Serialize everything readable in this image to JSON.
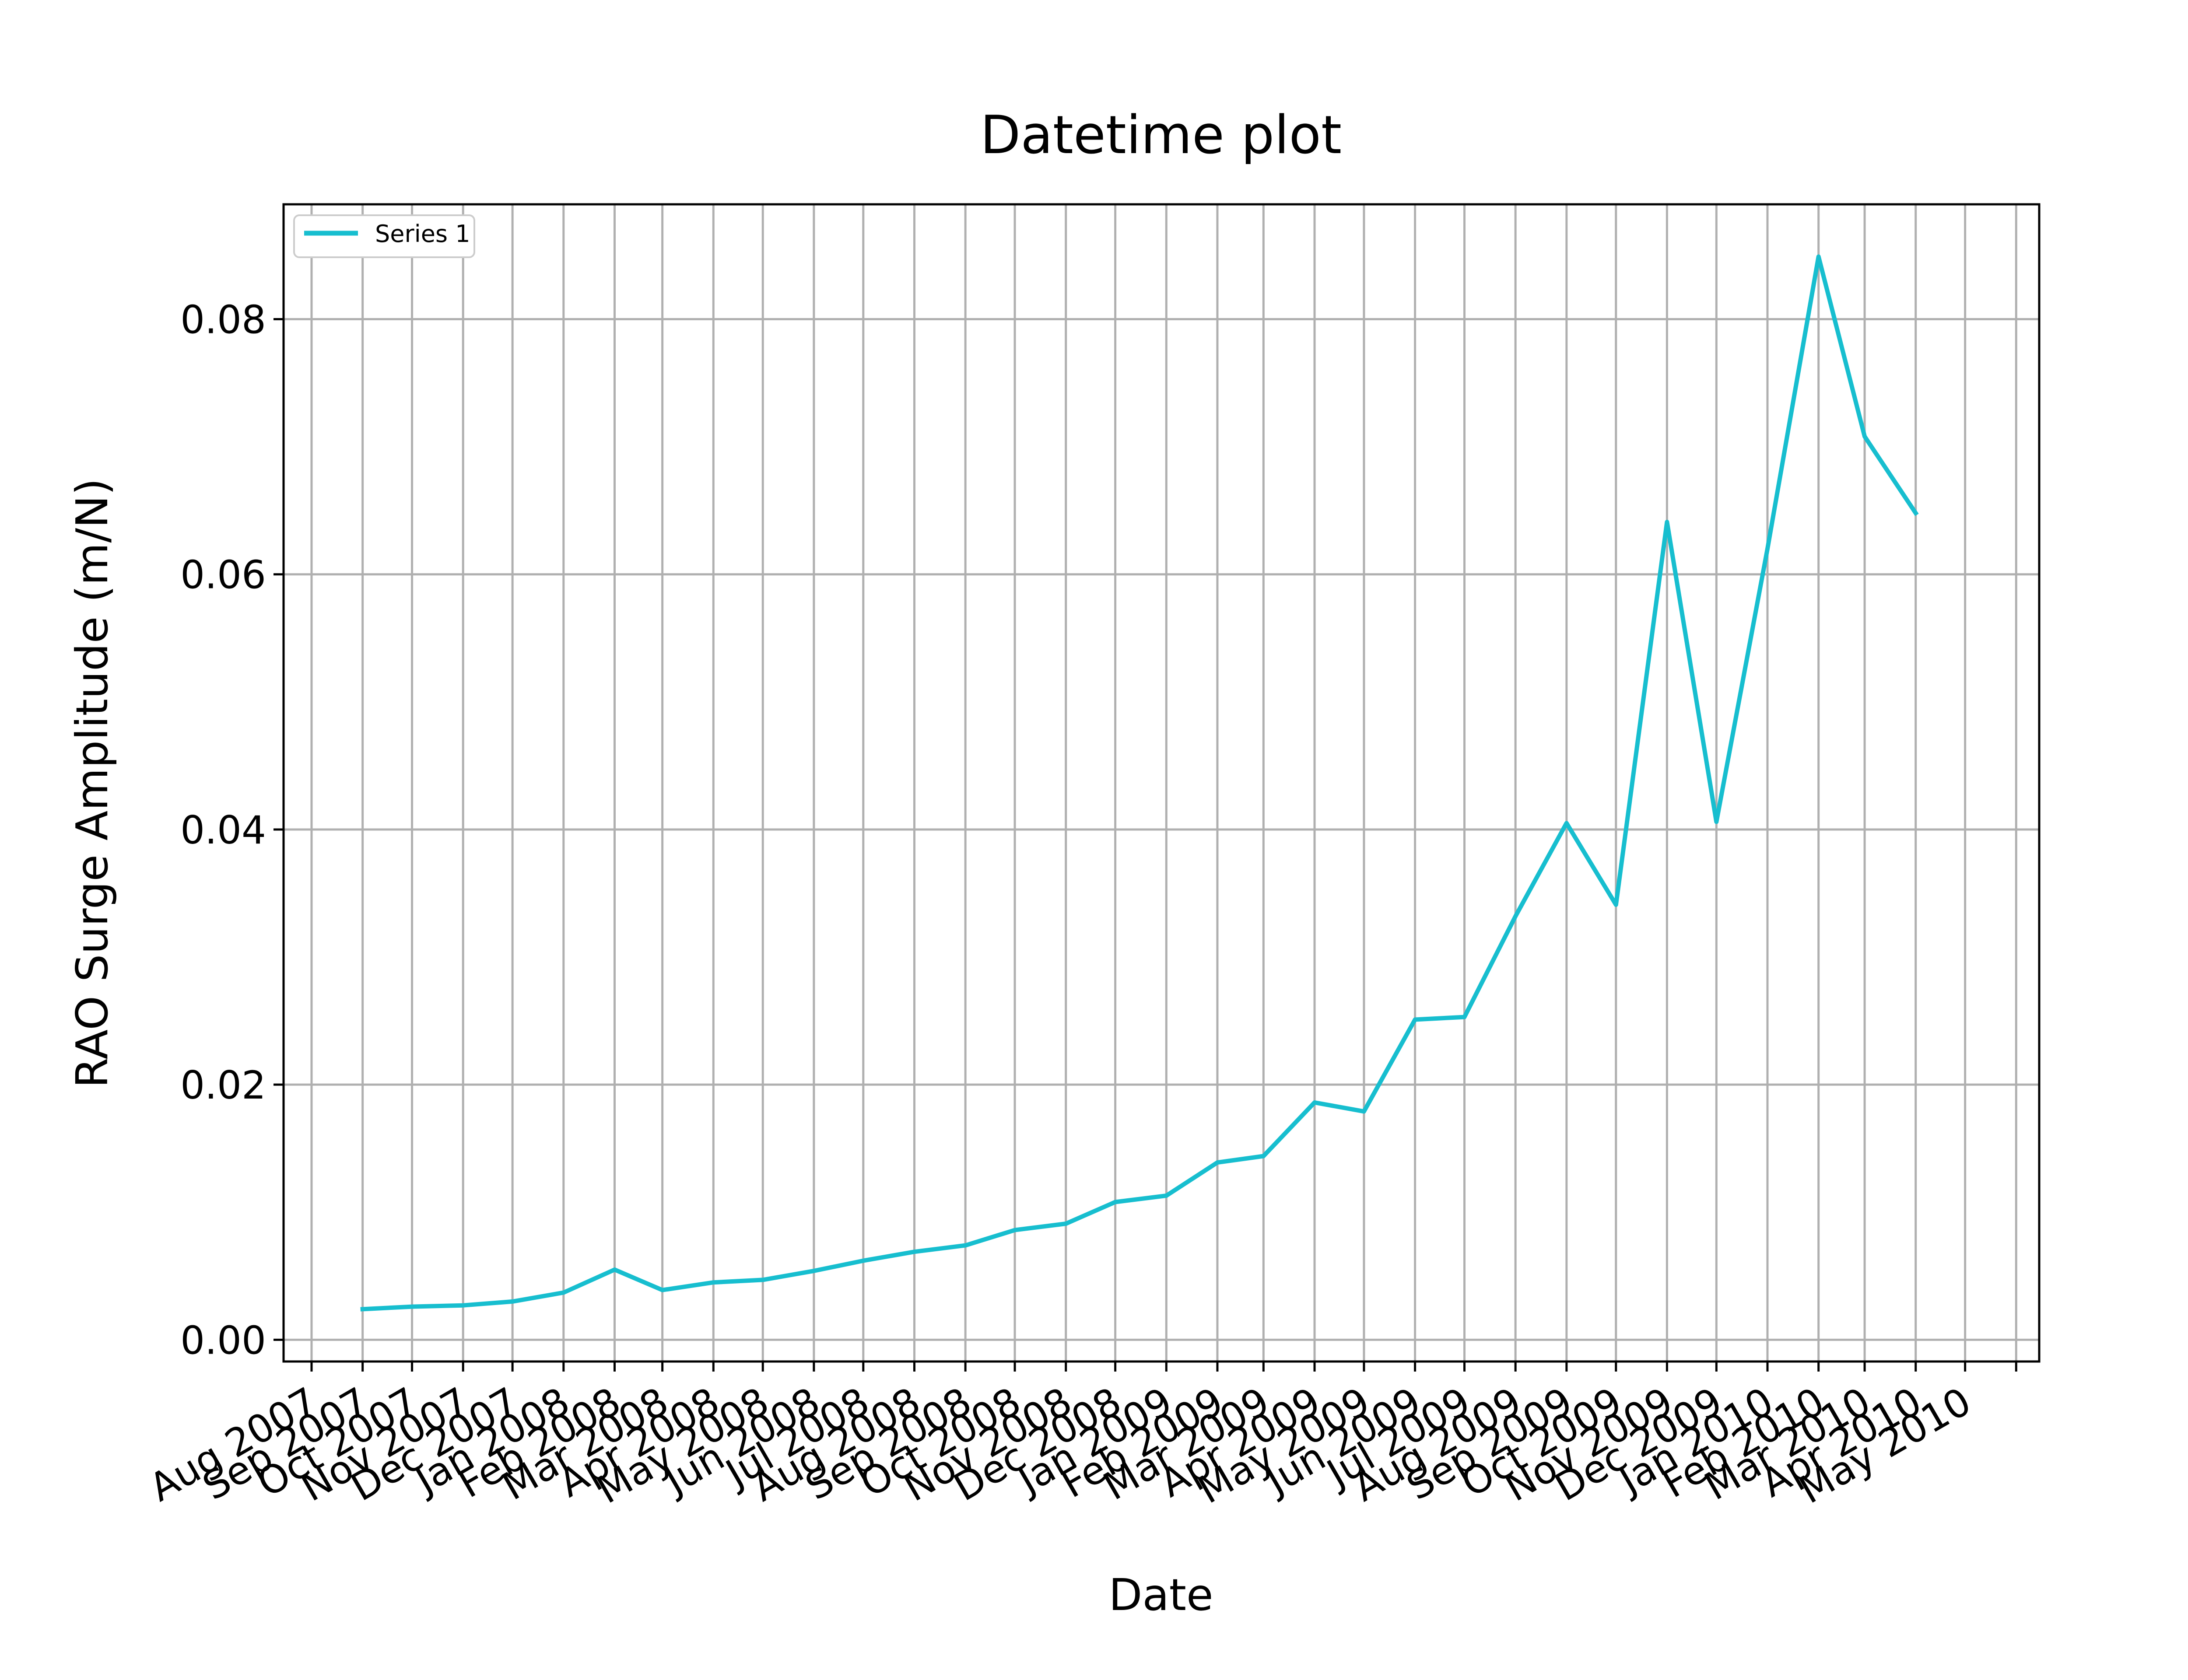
{
  "chart_data": {
    "type": "line",
    "title": "Datetime plot",
    "xlabel": "Date",
    "ylabel": "RAO Surge Amplitude (m/N)",
    "grid": true,
    "legend_position": "top-left",
    "line_color": "#17becf",
    "ylim": [
      -0.0017,
      0.089
    ],
    "yticks": [
      0.0,
      0.02,
      0.04,
      0.06,
      0.08
    ],
    "ytick_labels": [
      "0.00",
      "0.02",
      "0.04",
      "0.06",
      "0.08"
    ],
    "xticks": [
      "2007-08",
      "2007-09",
      "2007-10",
      "2007-11",
      "2007-12",
      "2008-01",
      "2008-02",
      "2008-03",
      "2008-04",
      "2008-05",
      "2008-06",
      "2008-07",
      "2008-08",
      "2008-09",
      "2008-10",
      "2008-11",
      "2008-12",
      "2009-01",
      "2009-02",
      "2009-03",
      "2009-04",
      "2009-05",
      "2009-06",
      "2009-07",
      "2009-08",
      "2009-09",
      "2009-10",
      "2009-11",
      "2009-12",
      "2010-01",
      "2010-02",
      "2010-03",
      "2010-04",
      "2010-05",
      "2010-06"
    ],
    "xtick_labels": [
      "Aug 2007",
      "Sep 2007",
      "Oct 2007",
      "Nov 2007",
      "Dec 2007",
      "Jan 2008",
      "Feb 2008",
      "Mar 2008",
      "Apr 2008",
      "May 2008",
      "Jun 2008",
      "Jul 2008",
      "Aug 2008",
      "Sep 2008",
      "Oct 2008",
      "Nov 2008",
      "Dec 2008",
      "Jan 2009",
      "Feb 2009",
      "Mar 2009",
      "Apr 2009",
      "May 2009",
      "Jun 2009",
      "Jul 2009",
      "Aug 2009",
      "Sep 2009",
      "Oct 2009",
      "Nov 2009",
      "Dec 2009",
      "Jan 2010",
      "Feb 2010",
      "Mar 2010",
      "Apr 2010",
      "May 2010",
      ""
    ],
    "xlim": [
      "2007-07-15",
      "2010-06-15"
    ],
    "series": [
      {
        "name": "Series 1",
        "x": [
          "2007-09",
          "2007-10",
          "2007-11",
          "2007-12",
          "2008-01",
          "2008-02",
          "2008-03",
          "2008-04",
          "2008-05",
          "2008-06",
          "2008-07",
          "2008-08",
          "2008-09",
          "2008-10",
          "2008-11",
          "2008-12",
          "2009-01",
          "2009-02",
          "2009-03",
          "2009-04",
          "2009-05",
          "2009-06",
          "2009-07",
          "2009-08",
          "2009-09",
          "2009-10",
          "2009-11",
          "2009-12",
          "2010-01",
          "2010-02",
          "2010-03",
          "2010-04",
          "2010-05"
        ],
        "values": [
          0.0024,
          0.0026,
          0.0027,
          0.003,
          0.0037,
          0.0055,
          0.0039,
          0.0045,
          0.0047,
          0.0054,
          0.0062,
          0.0069,
          0.0074,
          0.0086,
          0.0091,
          0.0108,
          0.0113,
          0.0139,
          0.0144,
          0.0186,
          0.0179,
          0.0251,
          0.0253,
          0.0332,
          0.0405,
          0.0341,
          0.0641,
          0.0406,
          0.062,
          0.0849,
          0.0708,
          0.0648,
          null
        ]
      }
    ]
  }
}
